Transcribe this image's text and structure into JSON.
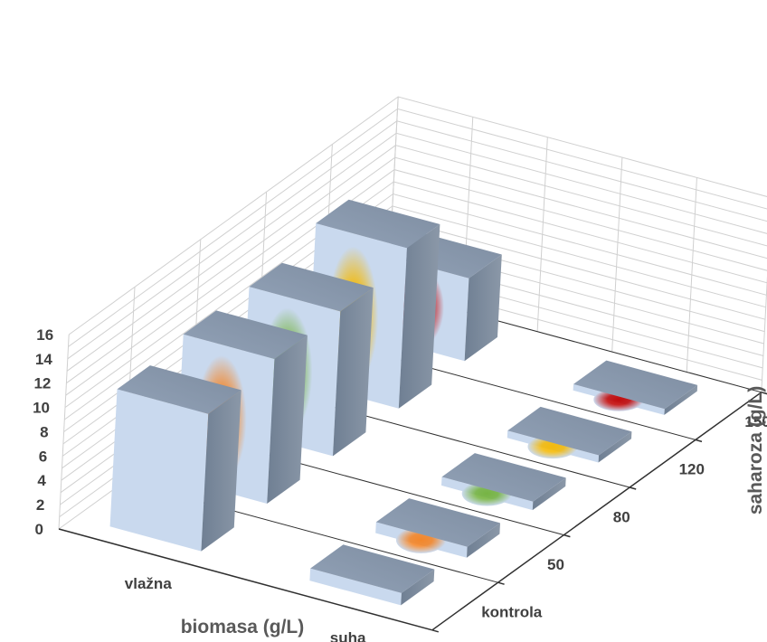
{
  "chart_data": {
    "type": "bar",
    "subtype": "3d-column",
    "xlabel": "biomasa (g/L)",
    "zlabel": "saharoza (g/L)",
    "categories": [
      "vlažna",
      "suha"
    ],
    "series": [
      {
        "name": "kontrola",
        "color": "#c9d9ee",
        "values": [
          11.3,
          1.0
        ]
      },
      {
        "name": "50",
        "color": "#f58220",
        "values": [
          11.9,
          0.9
        ]
      },
      {
        "name": "80",
        "color": "#72b23a",
        "values": [
          11.9,
          0.7
        ]
      },
      {
        "name": "120",
        "color": "#f5b800",
        "values": [
          13.2,
          0.6
        ]
      },
      {
        "name": "150",
        "color": "#c00000",
        "values": [
          6.8,
          0.5
        ]
      }
    ],
    "y_ticks": [
      "0",
      "2",
      "4",
      "6",
      "8",
      "10",
      "12",
      "14",
      "16"
    ],
    "ylim": [
      0,
      16
    ],
    "grid": true,
    "legend": "none"
  }
}
